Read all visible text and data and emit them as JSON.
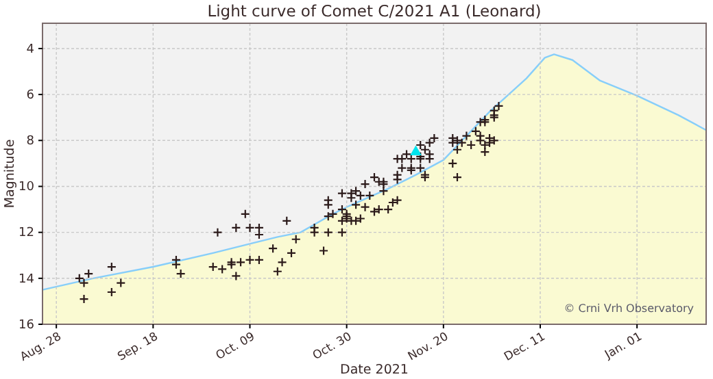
{
  "chart_data": {
    "type": "scatter",
    "title": "Light curve of Comet C/2021 A1 (Leonard)",
    "xlabel": "Date 2021",
    "ylabel": "Magnitude",
    "annotations": [
      "© Crni Vrh Observatory"
    ],
    "xlim": [
      "2021-08-25",
      "2022-01-16"
    ],
    "xticks": [
      {
        "value": "2021-08-28",
        "label": "Aug. 28"
      },
      {
        "value": "2021-09-18",
        "label": "Sep. 18"
      },
      {
        "value": "2021-10-09",
        "label": "Oct. 09"
      },
      {
        "value": "2021-10-30",
        "label": "Oct. 30"
      },
      {
        "value": "2021-11-20",
        "label": "Nov. 20"
      },
      {
        "value": "2021-12-11",
        "label": "Dec. 11"
      },
      {
        "value": "2022-01-01",
        "label": "Jan. 01"
      }
    ],
    "ylim": [
      16,
      2.9
    ],
    "yticks": [
      4,
      6,
      8,
      10,
      12,
      14,
      16
    ],
    "grid": true,
    "series": [
      {
        "type": "line",
        "color": "#87cefa",
        "lower": [
          16,
          16,
          16,
          16,
          16,
          16,
          16,
          16,
          16,
          16,
          16,
          16,
          16,
          16,
          16,
          16,
          16,
          16,
          16,
          16,
          16
        ],
        "upper": [
          14.5,
          14.0,
          13.5,
          12.9,
          12.5,
          12.2,
          12.0,
          11.2,
          10.9,
          10.1,
          9.5,
          8.85,
          6.75,
          5.3,
          4.4,
          4.25,
          4.5,
          5.4,
          6.05,
          6.9,
          7.55
        ],
        "x": [
          "2021-08-25",
          "2021-09-05",
          "2021-09-18",
          "2021-10-01",
          "2021-10-09",
          "2021-10-15",
          "2021-10-20",
          "2021-10-27",
          "2021-10-30",
          "2021-11-08",
          "2021-11-14",
          "2021-11-20",
          "2021-11-30",
          "2021-12-08",
          "2021-12-12",
          "2021-12-14",
          "2021-12-18",
          "2021-12-24",
          "2022-01-01",
          "2022-01-10",
          "2022-01-16"
        ],
        "values": [
          14.5,
          14.0,
          13.5,
          12.9,
          12.5,
          12.2,
          12.0,
          11.2,
          10.9,
          10.1,
          9.5,
          8.85,
          6.75,
          5.3,
          4.4,
          4.25,
          4.5,
          5.4,
          6.05,
          6.9,
          7.55
        ]
      },
      {
        "color": "#2b1a1a",
        "marker": "cross",
        "x": [
          "2021-09-02",
          "2021-09-03",
          "2021-09-03",
          "2021-09-04",
          "2021-09-09",
          "2021-09-09",
          "2021-09-11",
          "2021-09-23",
          "2021-09-23",
          "2021-09-24",
          "2021-10-01",
          "2021-10-02",
          "2021-10-03",
          "2021-10-05",
          "2021-10-05",
          "2021-10-06",
          "2021-10-06",
          "2021-10-07",
          "2021-10-08",
          "2021-10-09",
          "2021-10-09",
          "2021-10-11",
          "2021-10-11",
          "2021-10-11",
          "2021-10-14",
          "2021-10-15",
          "2021-10-16",
          "2021-10-17",
          "2021-10-18",
          "2021-10-19",
          "2021-10-23",
          "2021-10-23",
          "2021-10-25",
          "2021-10-26",
          "2021-10-26",
          "2021-10-26",
          "2021-10-26",
          "2021-10-27",
          "2021-10-29",
          "2021-10-29",
          "2021-10-29",
          "2021-10-29",
          "2021-10-30",
          "2021-10-30",
          "2021-10-30",
          "2021-10-31",
          "2021-10-31",
          "2021-10-31",
          "2021-11-01",
          "2021-11-01",
          "2021-11-01",
          "2021-11-02",
          "2021-11-02",
          "2021-11-03",
          "2021-11-03",
          "2021-11-04",
          "2021-11-05",
          "2021-11-05",
          "2021-11-06",
          "2021-11-06",
          "2021-11-07",
          "2021-11-07",
          "2021-11-07",
          "2021-11-08",
          "2021-11-09",
          "2021-11-10",
          "2021-11-10",
          "2021-11-10",
          "2021-11-10",
          "2021-11-11",
          "2021-11-11",
          "2021-11-12",
          "2021-11-13",
          "2021-11-13",
          "2021-11-13",
          "2021-11-15",
          "2021-11-15",
          "2021-11-15",
          "2021-11-15",
          "2021-11-16",
          "2021-11-16",
          "2021-11-16",
          "2021-11-17",
          "2021-11-17",
          "2021-11-17",
          "2021-11-18",
          "2021-11-22",
          "2021-11-22",
          "2021-11-22",
          "2021-11-23",
          "2021-11-23",
          "2021-11-23",
          "2021-11-24",
          "2021-11-25",
          "2021-11-26",
          "2021-11-27",
          "2021-11-28",
          "2021-11-28",
          "2021-11-28",
          "2021-11-29",
          "2021-11-29",
          "2021-11-29",
          "2021-11-29",
          "2021-11-30",
          "2021-11-30",
          "2021-12-01",
          "2021-12-01",
          "2021-12-01",
          "2021-12-01",
          "2021-12-02"
        ],
        "values": [
          14.0,
          14.2,
          14.9,
          13.8,
          13.5,
          14.6,
          14.2,
          13.2,
          13.4,
          13.8,
          13.5,
          12.0,
          13.6,
          13.3,
          13.4,
          13.9,
          11.8,
          13.3,
          11.2,
          11.8,
          13.2,
          11.8,
          12.1,
          13.2,
          12.7,
          13.7,
          13.3,
          11.5,
          12.9,
          12.3,
          11.8,
          12.0,
          12.8,
          10.6,
          10.8,
          11.3,
          12.0,
          11.2,
          10.3,
          12.0,
          11.0,
          11.5,
          11.4,
          11.2,
          11.3,
          10.3,
          10.5,
          11.5,
          10.8,
          11.5,
          10.2,
          11.4,
          10.4,
          10.9,
          9.9,
          10.4,
          11.1,
          9.6,
          9.8,
          11.0,
          9.8,
          10.2,
          9.9,
          11.0,
          10.7,
          10.6,
          9.5,
          8.8,
          9.7,
          9.2,
          8.8,
          8.6,
          8.8,
          9.2,
          9.3,
          8.8,
          9.2,
          8.2,
          8.7,
          9.6,
          8.4,
          9.5,
          8.1,
          8.6,
          8.8,
          7.9,
          8.1,
          9.0,
          7.9,
          8.0,
          8.4,
          9.6,
          8.1,
          7.8,
          8.2,
          7.6,
          7.8,
          7.2,
          8.0,
          8.2,
          8.5,
          7.1,
          7.2,
          7.9,
          8.1,
          8.0,
          6.9,
          7.0,
          6.7,
          6.5
        ]
      },
      {
        "type": "scatter",
        "color": "#00e5ee",
        "marker": "triangle",
        "x": [
          "2021-11-14"
        ],
        "values": [
          8.5
        ]
      }
    ]
  }
}
